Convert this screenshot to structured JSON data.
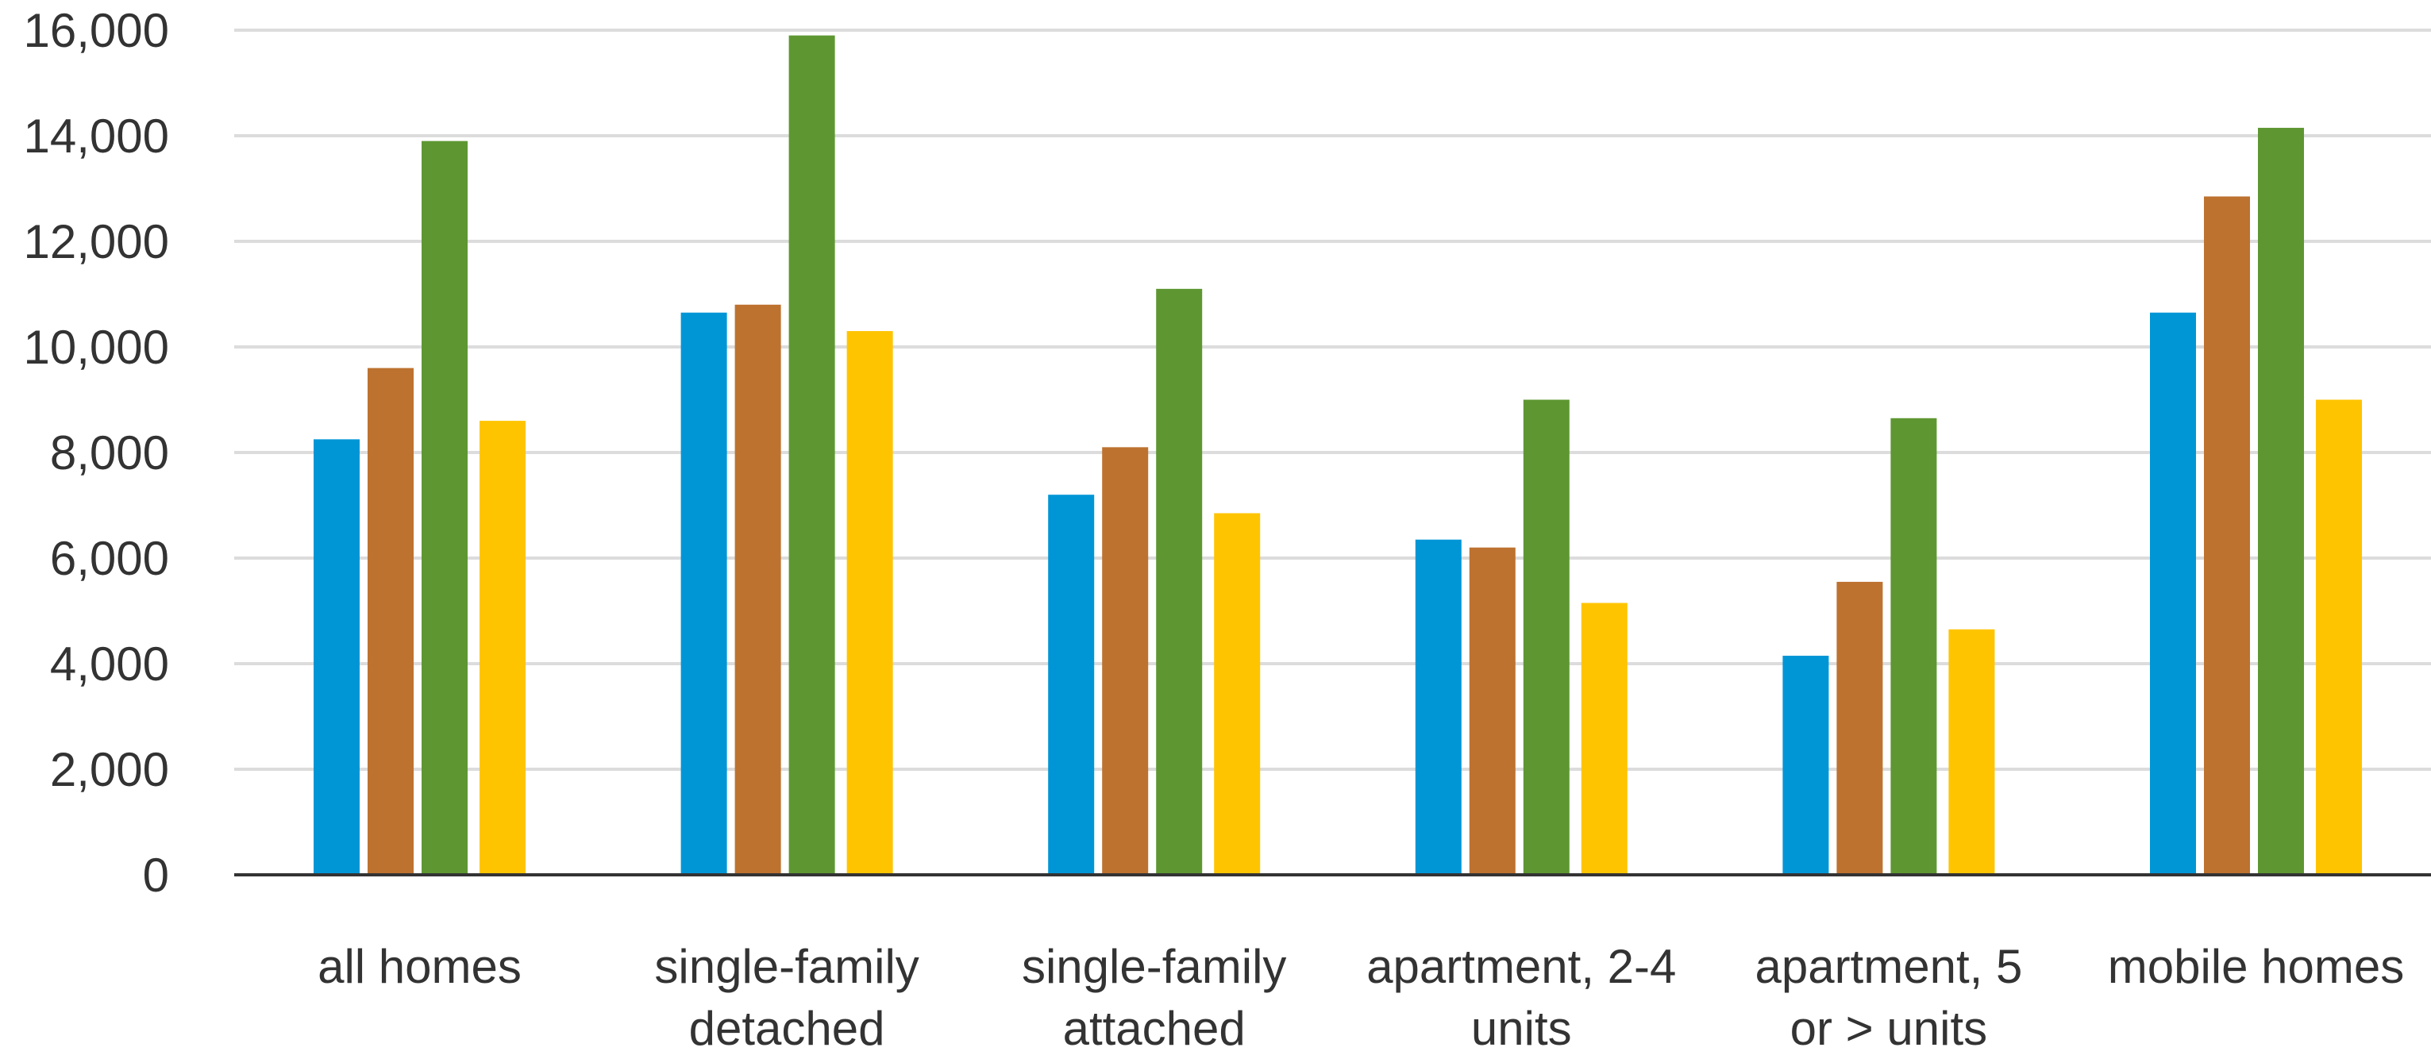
{
  "chart_data": {
    "type": "bar",
    "categories": [
      [
        "all homes"
      ],
      [
        "single-family",
        "detached"
      ],
      [
        "single-family",
        "attached"
      ],
      [
        "apartment, 2-4",
        "units"
      ],
      [
        "apartment, 5",
        "or > units"
      ],
      [
        "mobile homes"
      ]
    ],
    "series": [
      {
        "color": "#0096d6",
        "values": [
          8250,
          10650,
          7200,
          6350,
          4150,
          10650
        ]
      },
      {
        "color": "#bd7230",
        "values": [
          9600,
          10800,
          8100,
          6200,
          5550,
          12850
        ]
      },
      {
        "color": "#5e9732",
        "values": [
          13900,
          15900,
          11100,
          9000,
          8650,
          14150
        ]
      },
      {
        "color": "#ffc400",
        "values": [
          8600,
          10300,
          6850,
          5150,
          4650,
          9000
        ]
      }
    ],
    "y_ticks": [
      "0",
      "2,000",
      "4,000",
      "6,000",
      "8,000",
      "10,000",
      "12,000",
      "14,000",
      "16,000"
    ],
    "ylim": [
      0,
      16000
    ],
    "grid": true,
    "legend": "none"
  }
}
